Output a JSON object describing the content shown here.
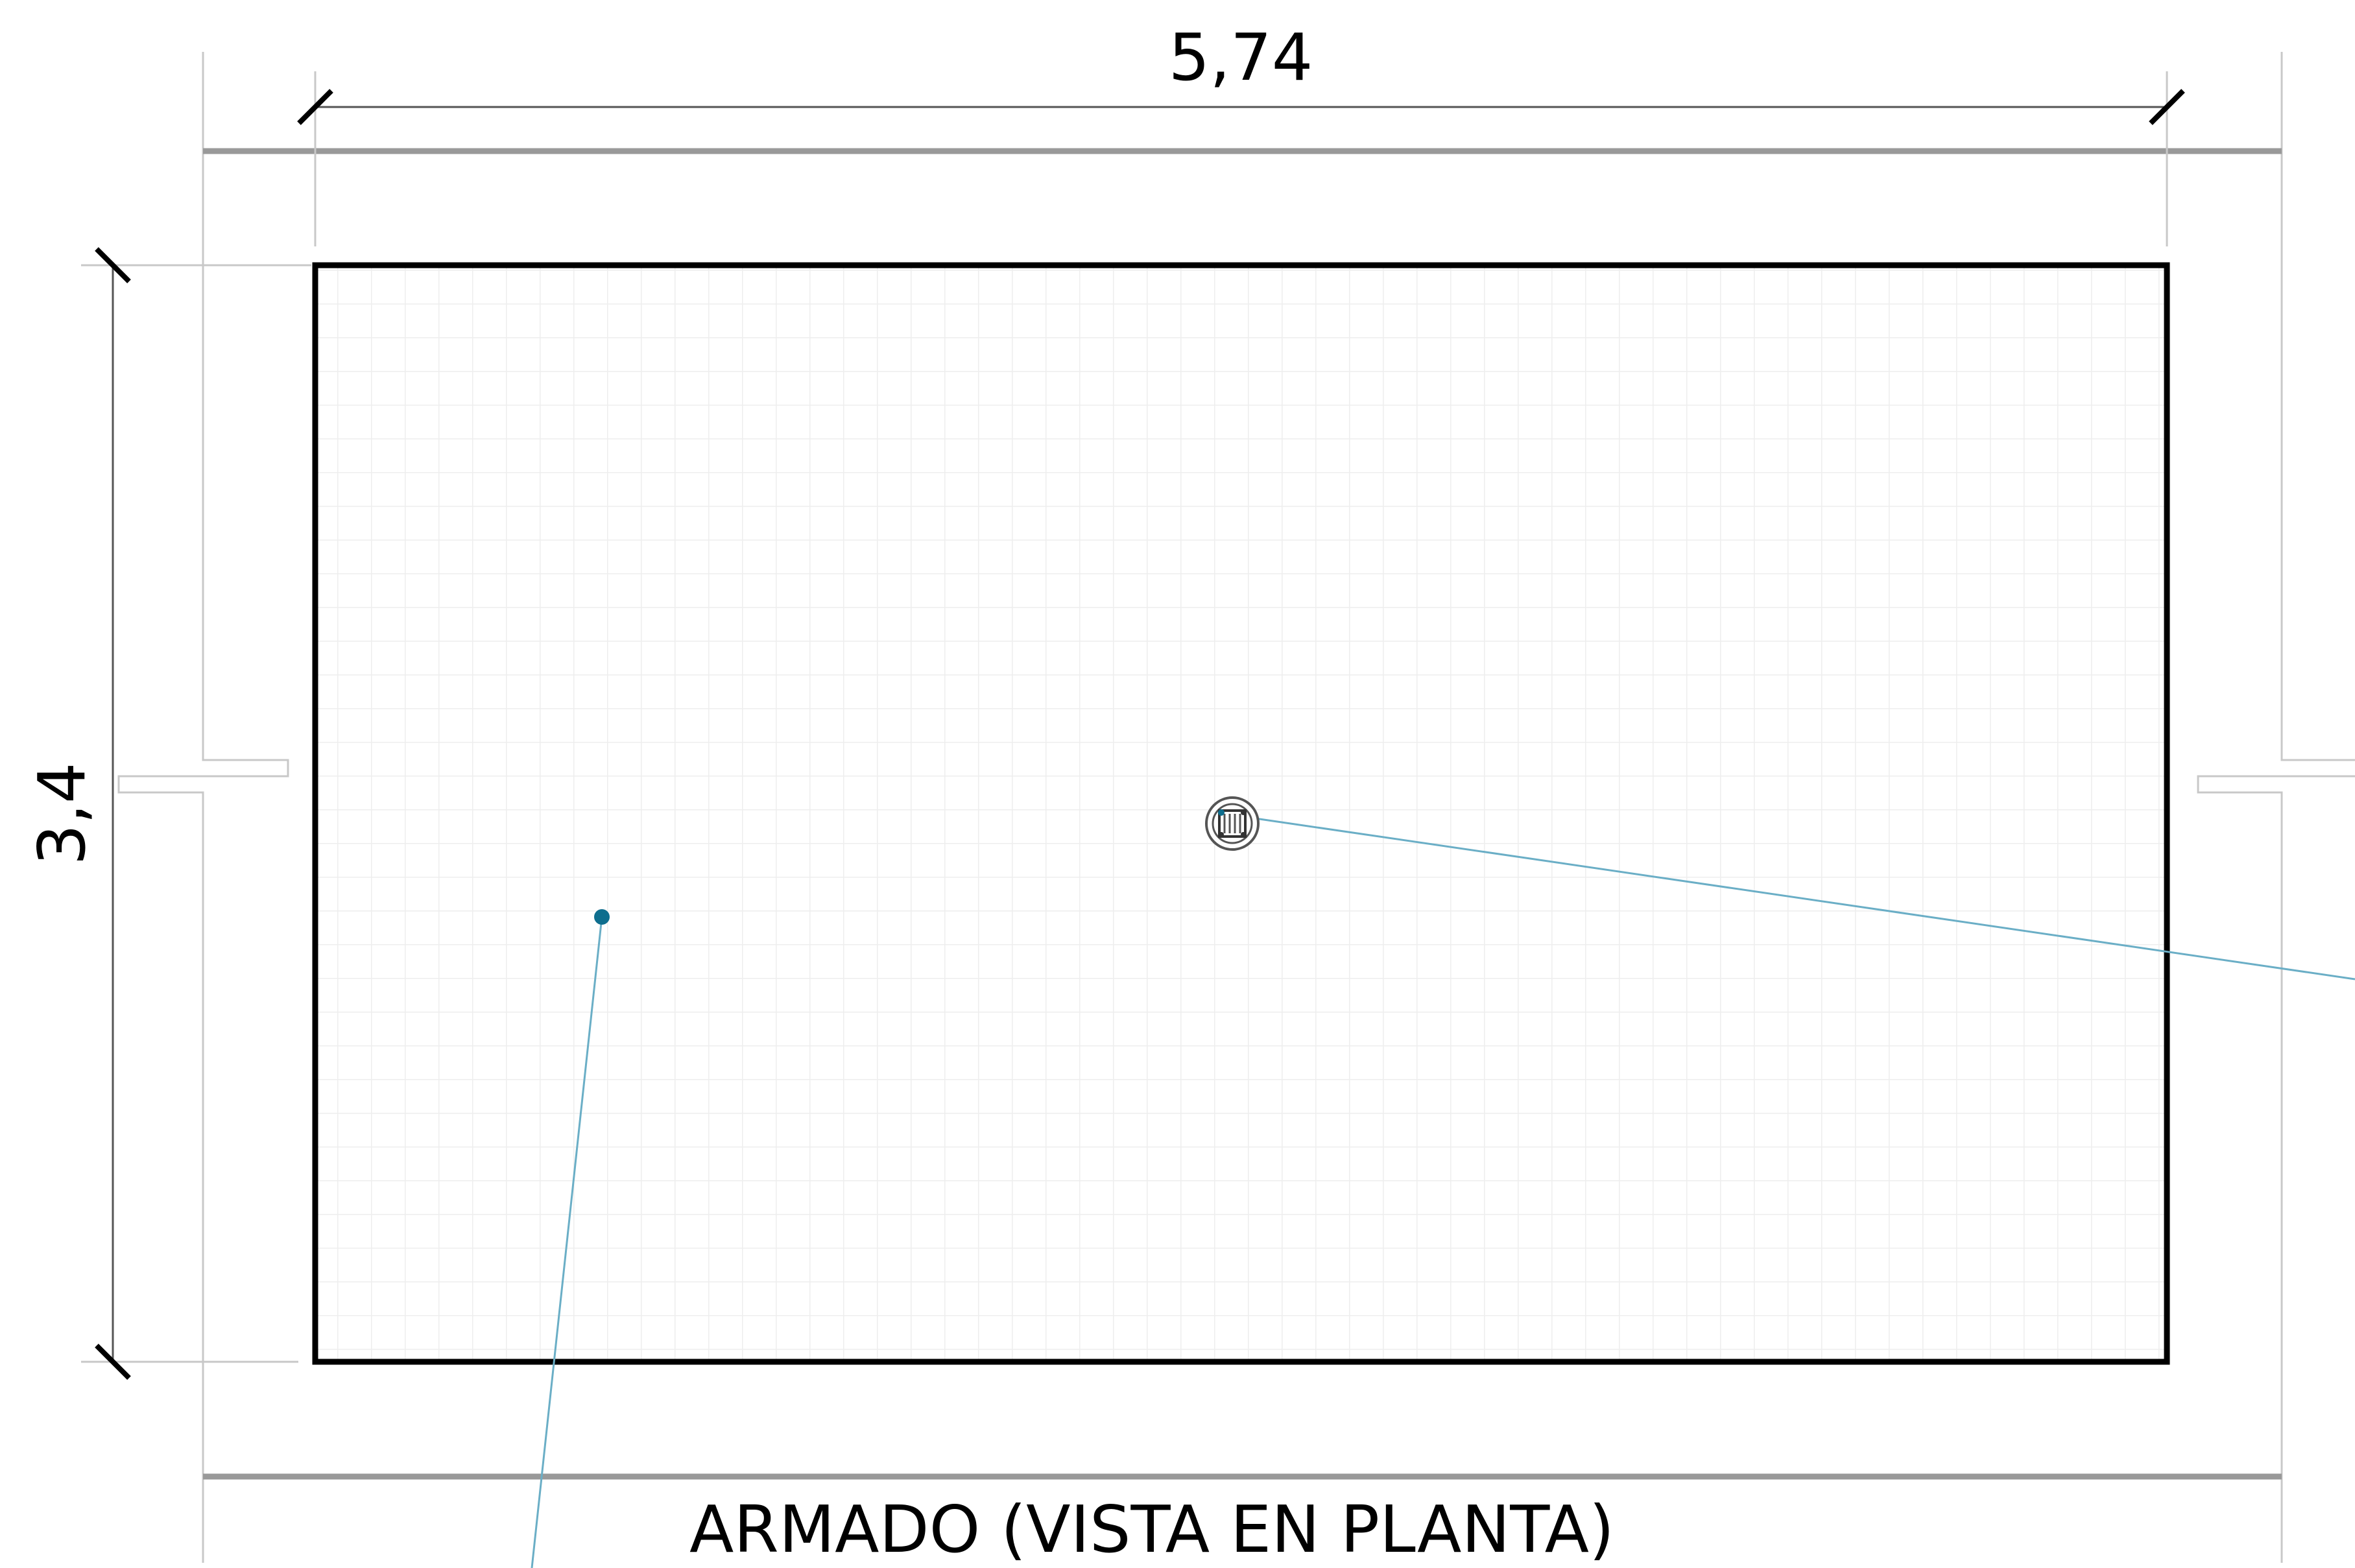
{
  "dimensions": {
    "width_label": "5,74",
    "height_label": "3,4"
  },
  "title": "ARMADO (VISTA EN PLANTA)",
  "colors": {
    "outline": "#000000",
    "wall_line": "#999999",
    "thin_line": "#c8c8c8",
    "dim_line": "#555555",
    "leader": "#6aaec6",
    "leader_dot": "#0e6e8e",
    "grid": "#eeeeee"
  }
}
